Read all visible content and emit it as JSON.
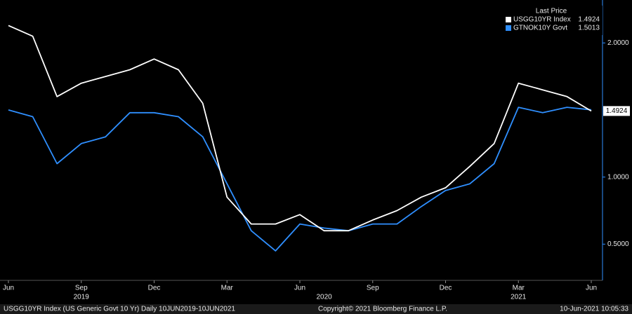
{
  "chart_data": {
    "type": "line",
    "x": [
      "2019-06",
      "2019-07",
      "2019-08",
      "2019-09",
      "2019-10",
      "2019-11",
      "2019-12",
      "2020-01",
      "2020-02",
      "2020-03",
      "2020-04",
      "2020-05",
      "2020-06",
      "2020-07",
      "2020-08",
      "2020-09",
      "2020-10",
      "2020-11",
      "2020-12",
      "2021-01",
      "2021-02",
      "2021-03",
      "2021-04",
      "2021-05",
      "2021-06"
    ],
    "series": [
      {
        "name": "USGG10YR Index",
        "color": "#ffffff",
        "values": [
          2.13,
          2.05,
          1.6,
          1.7,
          1.75,
          1.8,
          1.88,
          1.8,
          1.55,
          0.85,
          0.65,
          0.65,
          0.72,
          0.6,
          0.6,
          0.68,
          0.75,
          0.85,
          0.92,
          1.08,
          1.25,
          1.7,
          1.65,
          1.6,
          1.4924
        ]
      },
      {
        "name": "GTNOK10Y Govt",
        "color": "#2f8fff",
        "values": [
          1.5,
          1.45,
          1.1,
          1.25,
          1.3,
          1.48,
          1.48,
          1.45,
          1.3,
          0.95,
          0.6,
          0.45,
          0.65,
          0.62,
          0.6,
          0.65,
          0.65,
          0.78,
          0.9,
          0.95,
          1.1,
          1.52,
          1.48,
          1.52,
          1.5013
        ]
      }
    ],
    "legend_title": "Last Price",
    "xlim": [
      "2019-06",
      "2021-06"
    ],
    "xticks": [
      {
        "value": "2019-06",
        "label": "Jun"
      },
      {
        "value": "2019-09",
        "label": "Sep"
      },
      {
        "value": "2019-12",
        "label": "Dec"
      },
      {
        "value": "2020-03",
        "label": "Mar"
      },
      {
        "value": "2020-06",
        "label": "Jun"
      },
      {
        "value": "2020-09",
        "label": "Sep"
      },
      {
        "value": "2020-12",
        "label": "Dec"
      },
      {
        "value": "2021-03",
        "label": "Mar"
      },
      {
        "value": "2021-06",
        "label": "Jun"
      }
    ],
    "year_labels": [
      {
        "value": "2019-09",
        "label": "2019"
      },
      {
        "value": "2020-07",
        "label": "2020"
      },
      {
        "value": "2021-03",
        "label": "2021"
      }
    ],
    "ylim": [
      0.23,
      2.32
    ],
    "yticks": [
      {
        "value": 0.5,
        "label": "0.5000"
      },
      {
        "value": 1.0,
        "label": "1.0000"
      },
      {
        "value": 2.0,
        "label": "2.0000"
      }
    ],
    "footer": {
      "left": "USGG10YR Index (US Generic Govt 10 Yr)  Daily 10JUN2019-10JUN2021",
      "center": "Copyright© 2021 Bloomberg Finance L.P.",
      "right": "10-Jun-2021 10:05:33"
    }
  }
}
